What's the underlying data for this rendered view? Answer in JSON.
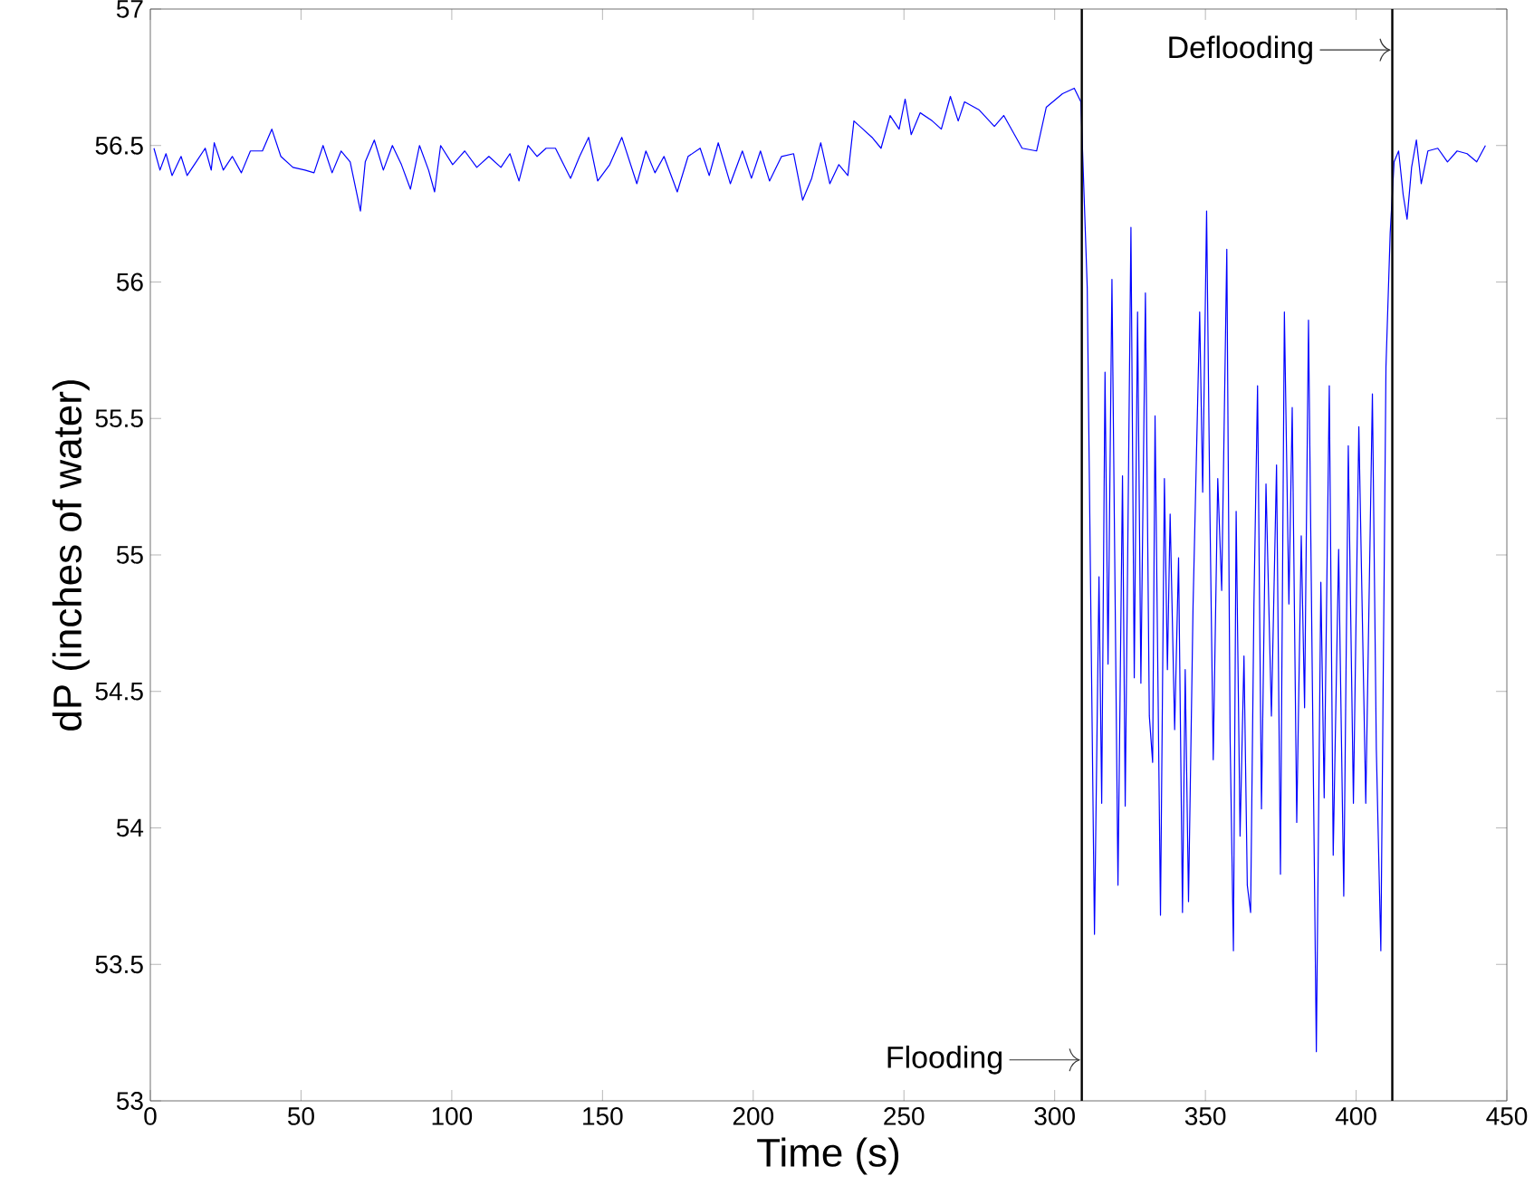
{
  "chart_data": {
    "type": "line",
    "xlabel": "Time (s)",
    "ylabel": "dP (inches of water)",
    "xlim": [
      0,
      450
    ],
    "ylim": [
      53,
      57
    ],
    "xticks": [
      0,
      50,
      100,
      150,
      200,
      250,
      300,
      350,
      400,
      450
    ],
    "yticks": [
      53,
      53.5,
      54,
      54.5,
      55,
      55.5,
      56,
      56.5,
      57
    ],
    "marker": "none",
    "line_style": "solid",
    "ref_lines": [
      {
        "axis": "x",
        "value": 309,
        "color": "#000000"
      },
      {
        "axis": "x",
        "value": 412,
        "color": "#000000"
      }
    ],
    "annotations": [
      {
        "text": "Flooding",
        "x": 309,
        "y": 53.15
      },
      {
        "text": "Deflooding",
        "x": 412,
        "y": 56.85
      }
    ],
    "series": [
      {
        "color": "#0000ff",
        "x": [
          1.2,
          3.2,
          5.2,
          7.2,
          10.2,
          12.2,
          15.2,
          18.2,
          20.2,
          21.2,
          24.2,
          27.2,
          30.2,
          33.2,
          37.2,
          40.3,
          43.3,
          47.3,
          51.3,
          54.3,
          57.3,
          60.3,
          63.3,
          66.3,
          69.7,
          71.3,
          74.3,
          77.3,
          80.3,
          83.3,
          86.3,
          89.3,
          92.3,
          94.3,
          96.3,
          100.3,
          104.3,
          108.3,
          112.3,
          116.3,
          119.3,
          122.3,
          125.3,
          128.3,
          131.3,
          134.4,
          139.4,
          142.4,
          145.4,
          148.4,
          152.4,
          156.4,
          161.4,
          164.4,
          167.4,
          170.4,
          174.8,
          178.4,
          182.4,
          185.4,
          188.4,
          192.4,
          196.4,
          199.4,
          202.4,
          205.4,
          209.4,
          213.4,
          216.4,
          219.4,
          222.4,
          225.4,
          228.4,
          231.4,
          233.4,
          236.4,
          239.4,
          242.4,
          245.4,
          248.4,
          250.4,
          252.4,
          255.4,
          259.4,
          262.4,
          265.4,
          268.0,
          270.1,
          275,
          280,
          283.1,
          289.2,
          294.0,
          297.2,
          302.6,
          306.5,
          308.7,
          310.8,
          313.2,
          314.7,
          315.6,
          316.7,
          317.7,
          319.0,
          321.0,
          322.5,
          323.4,
          325.3,
          326.4,
          327.5,
          328.6,
          330.1,
          331.4,
          332.5,
          333.3,
          335.1,
          336.4,
          337.4,
          338.3,
          339.8,
          341.1,
          342.4,
          343.3,
          344.4,
          345.9,
          348.1,
          349.1,
          350.4,
          351.5,
          352.6,
          354.1,
          355.4,
          357.1,
          358.2,
          359.3,
          360.2,
          361.5,
          362.8,
          363.9,
          365.0,
          366.1,
          367.3,
          368.6,
          370.1,
          371.9,
          373.6,
          374.9,
          376.2,
          377.7,
          378.8,
          380.3,
          381.8,
          382.9,
          384.2,
          385.3,
          386.8,
          388.3,
          389.4,
          391.1,
          392.4,
          394.2,
          395.9,
          397.4,
          399.1,
          400.9,
          403.2,
          405.4,
          406.7,
          408.2,
          409.9,
          411.3,
          412.6,
          414.1,
          415.6,
          416.9,
          418.4,
          420.0,
          421.6,
          423.8,
          427.1,
          430.3,
          433.5,
          436.8,
          440.0,
          442.9
        ],
        "values": [
          56.49,
          56.41,
          56.47,
          56.39,
          56.46,
          56.39,
          56.44,
          56.49,
          56.41,
          56.51,
          56.41,
          56.46,
          56.4,
          56.48,
          56.48,
          56.56,
          56.46,
          56.42,
          56.41,
          56.4,
          56.5,
          56.4,
          56.48,
          56.44,
          56.26,
          56.44,
          56.52,
          56.41,
          56.5,
          56.43,
          56.34,
          56.5,
          56.41,
          56.33,
          56.5,
          56.43,
          56.48,
          56.42,
          56.46,
          56.42,
          56.47,
          56.37,
          56.5,
          56.46,
          56.49,
          56.49,
          56.38,
          56.46,
          56.53,
          56.37,
          56.43,
          56.53,
          56.36,
          56.48,
          56.4,
          56.46,
          56.33,
          56.46,
          56.49,
          56.39,
          56.51,
          56.36,
          56.48,
          56.38,
          56.48,
          56.37,
          56.46,
          56.47,
          56.3,
          56.38,
          56.51,
          56.36,
          56.43,
          56.39,
          56.59,
          56.56,
          56.53,
          56.49,
          56.61,
          56.56,
          56.67,
          56.54,
          56.62,
          56.59,
          56.56,
          56.68,
          56.59,
          56.66,
          56.63,
          56.57,
          56.61,
          56.49,
          56.48,
          56.64,
          56.69,
          56.71,
          56.66,
          55.98,
          53.61,
          54.92,
          54.09,
          55.67,
          54.6,
          56.01,
          53.79,
          55.29,
          54.08,
          56.2,
          54.55,
          55.89,
          54.53,
          55.96,
          54.41,
          54.24,
          55.51,
          53.68,
          55.28,
          54.58,
          55.15,
          54.36,
          54.99,
          53.69,
          54.58,
          53.73,
          54.81,
          55.89,
          55.23,
          56.26,
          55.16,
          54.25,
          55.28,
          54.87,
          56.12,
          54.33,
          53.55,
          55.16,
          53.97,
          54.63,
          53.79,
          53.69,
          54.82,
          55.62,
          54.07,
          55.26,
          54.41,
          55.33,
          53.83,
          55.89,
          54.82,
          55.54,
          54.02,
          55.07,
          54.44,
          55.86,
          54.72,
          53.18,
          54.9,
          54.11,
          55.62,
          53.9,
          55.02,
          53.75,
          55.4,
          54.09,
          55.47,
          54.09,
          55.59,
          54.29,
          53.55,
          55.69,
          56.18,
          56.44,
          56.48,
          56.32,
          56.23,
          56.42,
          56.52,
          56.36,
          56.48,
          56.49,
          56.44,
          56.48,
          56.47,
          56.44,
          56.5
        ]
      }
    ]
  }
}
